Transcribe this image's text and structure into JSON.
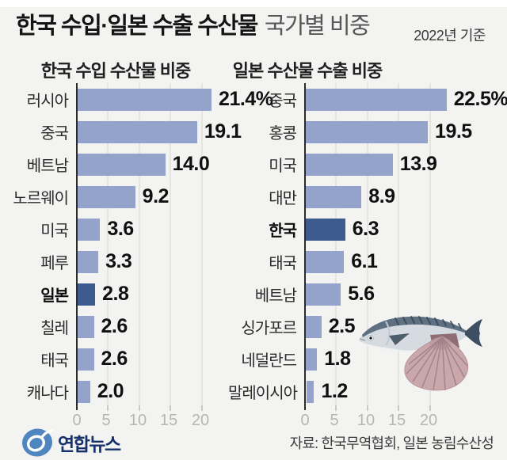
{
  "header": {
    "title_main": "한국 수입·일본 수출 수산물",
    "title_sub": "국가별 비중",
    "date_note": "2022년 기준"
  },
  "chart_data": [
    {
      "type": "bar",
      "orientation": "horizontal",
      "title": "한국 수입 수산물 비중",
      "unit": "%",
      "categories": [
        "러시아",
        "중국",
        "베트남",
        "노르웨이",
        "미국",
        "페루",
        "일본",
        "칠레",
        "태국",
        "캐나다"
      ],
      "values": [
        21.4,
        19.1,
        14.0,
        9.2,
        3.6,
        3.3,
        2.8,
        2.6,
        2.6,
        2.0
      ],
      "value_labels": [
        "21.4%",
        "19.1",
        "14.0",
        "9.2",
        "3.6",
        "3.3",
        "2.8",
        "2.6",
        "2.6",
        "2.0"
      ],
      "highlight_category": "일본",
      "ticks": [
        "0",
        "5",
        "10",
        "15",
        "20"
      ],
      "xlim": [
        0,
        23
      ],
      "grid": true,
      "legend": false
    },
    {
      "type": "bar",
      "orientation": "horizontal",
      "title": "일본 수산물 수출 비중",
      "unit": "%",
      "categories": [
        "중국",
        "홍콩",
        "미국",
        "대만",
        "한국",
        "태국",
        "베트남",
        "싱가포르",
        "네덜란드",
        "말레이시아"
      ],
      "values": [
        22.5,
        19.5,
        13.9,
        8.9,
        6.3,
        6.1,
        5.6,
        2.5,
        1.8,
        1.2
      ],
      "value_labels": [
        "22.5%",
        "19.5",
        "13.9",
        "8.9",
        "6.3",
        "6.1",
        "5.6",
        "2.5",
        "1.8",
        "1.2"
      ],
      "highlight_category": "한국",
      "ticks": [
        "0",
        "5",
        "10",
        "15",
        "20"
      ],
      "xlim": [
        0,
        23
      ],
      "grid": true,
      "legend": false
    }
  ],
  "colors": {
    "background": "#f3f3f1",
    "bar": "#93a3cb",
    "bar_highlight": "#3d5b8e",
    "axis": "#2b2b2b",
    "gridline": "#e4e4e2",
    "tick_text": "#b5b5b2"
  },
  "illustration": {
    "name": "fish-and-scallop",
    "fish_color": "#5e7082",
    "shell_color": "#c9a7ab"
  },
  "footer": {
    "logo_text": "연합뉴스",
    "source": "자료: 한국무역협회, 일본 농림수산성"
  }
}
